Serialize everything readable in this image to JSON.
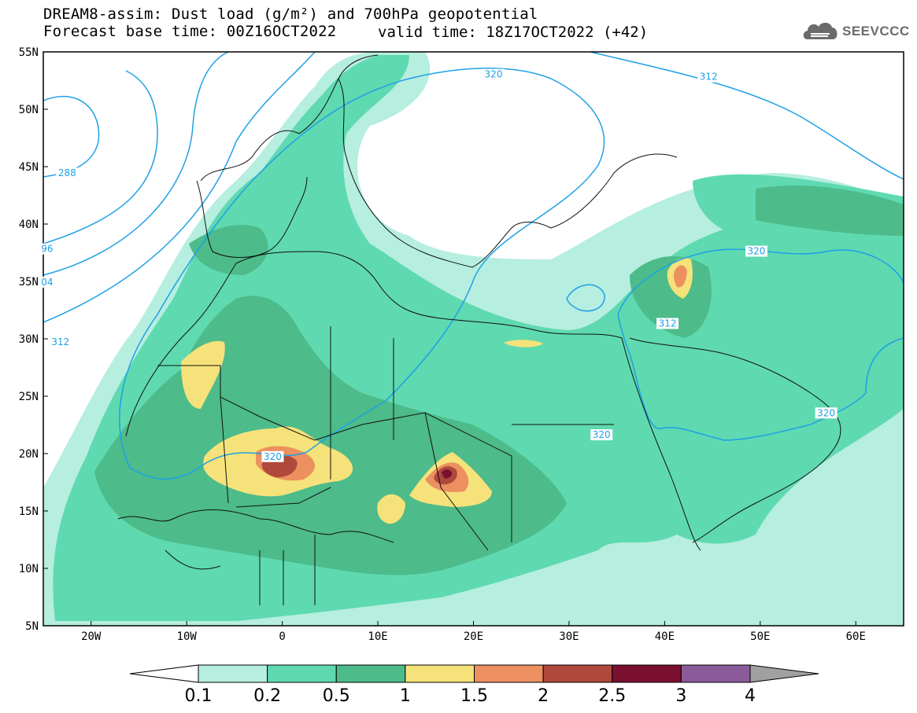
{
  "header": {
    "title": "DREAM8-assim: Dust load (g/m²) and 700hPa geopotential",
    "base_time": "Forecast base time: 00Z16OCT2022",
    "valid_time": "valid time: 18Z17OCT2022 (+42)"
  },
  "logo": {
    "text": "SEEVCCC",
    "icon": "cloud-logo-icon"
  },
  "map": {
    "lon_range": [
      -25,
      65
    ],
    "lat_range": [
      5,
      55
    ],
    "lat_ticks": [
      {
        "v": 55,
        "t": "55N"
      },
      {
        "v": 50,
        "t": "50N"
      },
      {
        "v": 45,
        "t": "45N"
      },
      {
        "v": 40,
        "t": "40N"
      },
      {
        "v": 35,
        "t": "35N"
      },
      {
        "v": 30,
        "t": "30N"
      },
      {
        "v": 25,
        "t": "25N"
      },
      {
        "v": 20,
        "t": "20N"
      },
      {
        "v": 15,
        "t": "15N"
      },
      {
        "v": 10,
        "t": "10N"
      },
      {
        "v": 5,
        "t": "5N"
      }
    ],
    "lon_ticks": [
      {
        "v": -20,
        "t": "20W"
      },
      {
        "v": -10,
        "t": "10W"
      },
      {
        "v": 0,
        "t": "0"
      },
      {
        "v": 10,
        "t": "10E"
      },
      {
        "v": 20,
        "t": "20E"
      },
      {
        "v": 30,
        "t": "30E"
      },
      {
        "v": 40,
        "t": "40E"
      },
      {
        "v": 50,
        "t": "50E"
      },
      {
        "v": 60,
        "t": "60E"
      }
    ],
    "contour_labels": [
      {
        "t": "288",
        "lon": -22.5,
        "lat": 44.3
      },
      {
        "t": "96",
        "lon": -24.6,
        "lat": 37.7
      },
      {
        "t": "04",
        "lon": -24.6,
        "lat": 34.8
      },
      {
        "t": "312",
        "lon": -23.2,
        "lat": 29.6
      },
      {
        "t": "320",
        "lon": 22.1,
        "lat": 52.9
      },
      {
        "t": "312",
        "lon": 44.6,
        "lat": 52.7
      },
      {
        "t": "320",
        "lon": -1.0,
        "lat": 19.6
      },
      {
        "t": "320",
        "lon": 49.6,
        "lat": 37.5
      },
      {
        "t": "312",
        "lon": 40.3,
        "lat": 31.2
      },
      {
        "t": "320",
        "lon": 33.4,
        "lat": 21.5
      },
      {
        "t": "320",
        "lon": 56.9,
        "lat": 23.4
      }
    ]
  },
  "legend": {
    "labels": [
      "0.1",
      "0.2",
      "0.5",
      "1",
      "1.5",
      "2",
      "2.5",
      "3",
      "4"
    ],
    "colors": [
      "#b6eee0",
      "#5fd9b0",
      "#4dbb8a",
      "#f5e27a",
      "#ec9060",
      "#b0483c",
      "#7a1030",
      "#8a5a9a"
    ]
  }
}
